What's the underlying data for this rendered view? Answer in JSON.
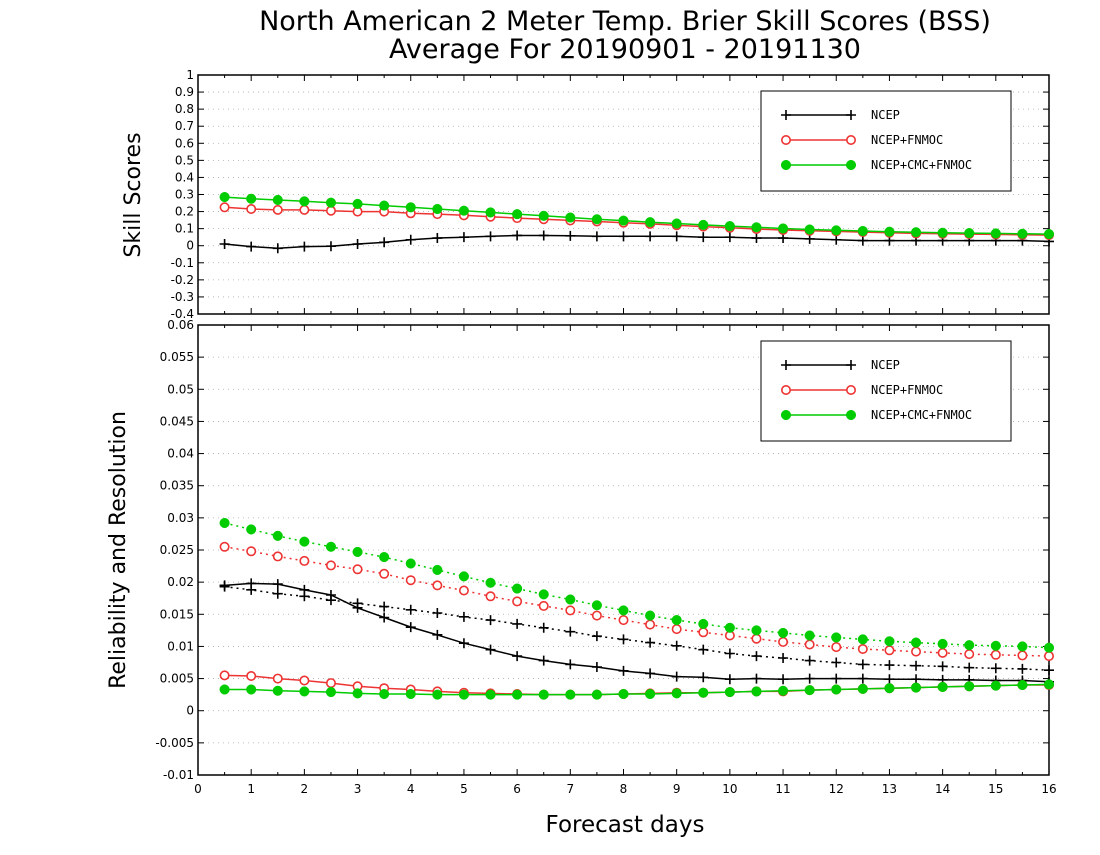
{
  "chart_data": [
    {
      "type": "line",
      "title": "North American 2 Meter Temp. Brier Skill Scores (BSS)",
      "subtitle": "Average For 20190901 - 20191130",
      "ylabel": "Skill Scores",
      "xlabel": "",
      "xlim": [
        0,
        16
      ],
      "ylim": [
        -0.4,
        1
      ],
      "x_ticks": [
        "0",
        "1",
        "2",
        "3",
        "4",
        "5",
        "6",
        "7",
        "8",
        "9",
        "10",
        "11",
        "12",
        "13",
        "14",
        "15",
        "16"
      ],
      "y_ticks": [
        "-0.4",
        "-0.3",
        "-0.2",
        "-0.1",
        "0",
        "0.1",
        "0.2",
        "0.3",
        "0.4",
        "0.5",
        "0.6",
        "0.7",
        "0.8",
        "0.9",
        "1"
      ],
      "grid": true,
      "legend_position": "top-right",
      "x": [
        0.5,
        1,
        1.5,
        2,
        2.5,
        3,
        3.5,
        4,
        4.5,
        5,
        5.5,
        6,
        6.5,
        7,
        7.5,
        8,
        8.5,
        9,
        9.5,
        10,
        10.5,
        11,
        11.5,
        12,
        12.5,
        13,
        13.5,
        14,
        14.5,
        15,
        15.5,
        16
      ],
      "series": [
        {
          "name": "NCEP",
          "color": "#000000",
          "marker": "plus",
          "style": "solid",
          "values": [
            0.01,
            -0.005,
            -0.015,
            -0.005,
            -0.003,
            0.01,
            0.02,
            0.035,
            0.045,
            0.05,
            0.055,
            0.06,
            0.06,
            0.058,
            0.055,
            0.055,
            0.055,
            0.055,
            0.05,
            0.05,
            0.045,
            0.045,
            0.04,
            0.035,
            0.03,
            0.03,
            0.03,
            0.03,
            0.03,
            0.03,
            0.03,
            0.025
          ]
        },
        {
          "name": "NCEP+FNMOC",
          "color": "#ee3333",
          "marker": "open-circle",
          "style": "solid",
          "values": [
            0.225,
            0.215,
            0.21,
            0.21,
            0.205,
            0.2,
            0.2,
            0.19,
            0.185,
            0.178,
            0.17,
            0.162,
            0.155,
            0.148,
            0.142,
            0.135,
            0.128,
            0.12,
            0.112,
            0.105,
            0.098,
            0.092,
            0.088,
            0.084,
            0.08,
            0.076,
            0.072,
            0.07,
            0.068,
            0.066,
            0.064,
            0.062
          ]
        },
        {
          "name": "NCEP+CMC+FNMOC",
          "color": "#00cc00",
          "marker": "filled-circle",
          "style": "solid",
          "values": [
            0.285,
            0.275,
            0.268,
            0.26,
            0.252,
            0.245,
            0.235,
            0.225,
            0.215,
            0.205,
            0.195,
            0.185,
            0.175,
            0.165,
            0.155,
            0.147,
            0.138,
            0.13,
            0.122,
            0.115,
            0.108,
            0.101,
            0.095,
            0.09,
            0.086,
            0.082,
            0.079,
            0.076,
            0.074,
            0.072,
            0.07,
            0.068
          ]
        }
      ]
    },
    {
      "type": "line",
      "ylabel": "Reliability and Resolution",
      "xlabel": "Forecast days",
      "xlim": [
        0,
        16
      ],
      "ylim": [
        -0.01,
        0.06
      ],
      "x_ticks": [
        "0",
        "1",
        "2",
        "3",
        "4",
        "5",
        "6",
        "7",
        "8",
        "9",
        "10",
        "11",
        "12",
        "13",
        "14",
        "15",
        "16"
      ],
      "y_ticks": [
        "-0.01",
        "-0.005",
        "0",
        "0.005",
        "0.01",
        "0.015",
        "0.02",
        "0.025",
        "0.03",
        "0.035",
        "0.04",
        "0.045",
        "0.05",
        "0.055",
        "0.06"
      ],
      "grid": true,
      "legend_position": "top-right",
      "x": [
        0.5,
        1,
        1.5,
        2,
        2.5,
        3,
        3.5,
        4,
        4.5,
        5,
        5.5,
        6,
        6.5,
        7,
        7.5,
        8,
        8.5,
        9,
        9.5,
        10,
        10.5,
        11,
        11.5,
        12,
        12.5,
        13,
        13.5,
        14,
        14.5,
        15,
        15.5,
        16
      ],
      "legend": [
        {
          "name": "NCEP",
          "color": "#000000",
          "marker": "plus"
        },
        {
          "name": "NCEP+FNMOC",
          "color": "#ee3333",
          "marker": "open-circle"
        },
        {
          "name": "NCEP+CMC+FNMOC",
          "color": "#00cc00",
          "marker": "filled-circle"
        }
      ],
      "series": [
        {
          "name": "NCEP",
          "metric": "reliability",
          "color": "#000000",
          "marker": "plus",
          "style": "solid",
          "values": [
            0.0195,
            0.0198,
            0.0197,
            0.0188,
            0.018,
            0.016,
            0.0145,
            0.013,
            0.0118,
            0.0105,
            0.0095,
            0.0085,
            0.0078,
            0.0072,
            0.0068,
            0.0062,
            0.0058,
            0.0053,
            0.0052,
            0.0049,
            0.005,
            0.0049,
            0.005,
            0.005,
            0.005,
            0.0049,
            0.0049,
            0.0048,
            0.0048,
            0.0047,
            0.0047,
            0.0045
          ]
        },
        {
          "name": "NCEP",
          "metric": "resolution",
          "color": "#000000",
          "marker": "plus",
          "style": "dotted",
          "values": [
            0.0193,
            0.0188,
            0.0182,
            0.0178,
            0.0172,
            0.0167,
            0.0162,
            0.0157,
            0.0152,
            0.0146,
            0.0141,
            0.0135,
            0.0129,
            0.0123,
            0.0116,
            0.0111,
            0.0106,
            0.0101,
            0.0095,
            0.0089,
            0.0085,
            0.0082,
            0.0078,
            0.0075,
            0.0072,
            0.0071,
            0.007,
            0.0069,
            0.0067,
            0.0066,
            0.0065,
            0.0063
          ]
        },
        {
          "name": "NCEP+FNMOC",
          "metric": "reliability",
          "color": "#ee3333",
          "marker": "open-circle",
          "style": "solid",
          "values": [
            0.0055,
            0.0054,
            0.005,
            0.0047,
            0.0043,
            0.0038,
            0.0035,
            0.0033,
            0.003,
            0.0028,
            0.0027,
            0.0026,
            0.0025,
            0.0025,
            0.0025,
            0.0026,
            0.0027,
            0.0028,
            0.0028,
            0.0029,
            0.003,
            0.003,
            0.0032,
            0.0033,
            0.0034,
            0.0035,
            0.0036,
            0.0037,
            0.0038,
            0.0039,
            0.004,
            0.004
          ]
        },
        {
          "name": "NCEP+FNMOC",
          "metric": "resolution",
          "color": "#ee3333",
          "marker": "open-circle",
          "style": "dotted",
          "values": [
            0.0255,
            0.0248,
            0.024,
            0.0233,
            0.0226,
            0.022,
            0.0213,
            0.0203,
            0.0195,
            0.0187,
            0.0178,
            0.017,
            0.0163,
            0.0156,
            0.0148,
            0.0141,
            0.0134,
            0.0127,
            0.0122,
            0.0117,
            0.0112,
            0.0107,
            0.0103,
            0.0099,
            0.0096,
            0.0094,
            0.0092,
            0.009,
            0.0088,
            0.0087,
            0.0086,
            0.0085
          ]
        },
        {
          "name": "NCEP+CMC+FNMOC",
          "metric": "reliability",
          "color": "#00cc00",
          "marker": "filled-circle",
          "style": "solid",
          "values": [
            0.0033,
            0.0033,
            0.0031,
            0.003,
            0.0029,
            0.0027,
            0.0026,
            0.0026,
            0.0025,
            0.0025,
            0.0025,
            0.0025,
            0.0025,
            0.0025,
            0.0025,
            0.0026,
            0.0026,
            0.0027,
            0.0028,
            0.0029,
            0.003,
            0.0031,
            0.0032,
            0.0033,
            0.0034,
            0.0035,
            0.0036,
            0.0037,
            0.0038,
            0.0039,
            0.004,
            0.0041
          ]
        },
        {
          "name": "NCEP+CMC+FNMOC",
          "metric": "resolution",
          "color": "#00cc00",
          "marker": "filled-circle",
          "style": "dotted",
          "values": [
            0.0292,
            0.0282,
            0.0272,
            0.0263,
            0.0255,
            0.0247,
            0.0239,
            0.0229,
            0.0219,
            0.0209,
            0.0199,
            0.019,
            0.0181,
            0.0173,
            0.0164,
            0.0156,
            0.0148,
            0.0141,
            0.0135,
            0.0129,
            0.0125,
            0.0121,
            0.0117,
            0.0114,
            0.0111,
            0.0108,
            0.0106,
            0.0104,
            0.0102,
            0.0101,
            0.01,
            0.0098
          ]
        }
      ]
    }
  ]
}
